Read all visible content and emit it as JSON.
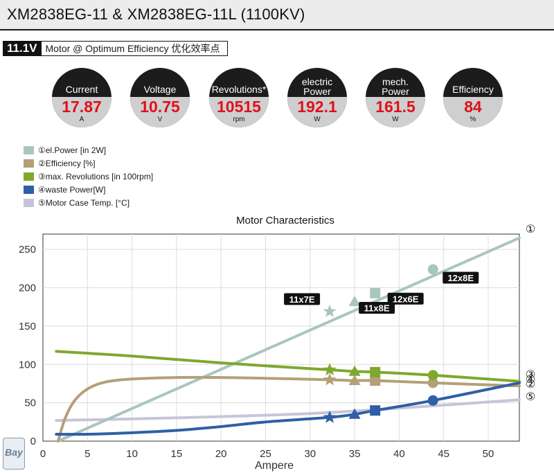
{
  "header": {
    "title": "XM2838EG-11 & XM2838EG-11L (1100KV)",
    "voltage": "11.1V",
    "subtitle": "Motor @ Optimum Efficiency   优化效率点"
  },
  "stats": [
    {
      "label_lines": [
        "Current"
      ],
      "value": "17.87",
      "unit": "A"
    },
    {
      "label_lines": [
        "Voltage"
      ],
      "value": "10.75",
      "unit": "V"
    },
    {
      "label_lines": [
        "Revolutions*"
      ],
      "value": "10515",
      "unit": "rpm"
    },
    {
      "label_lines": [
        "electric",
        "Power"
      ],
      "value": "192.1",
      "unit": "W"
    },
    {
      "label_lines": [
        "mech.",
        "Power"
      ],
      "value": "161.5",
      "unit": "W"
    },
    {
      "label_lines": [
        "Efficiency"
      ],
      "value": "84",
      "unit": "%"
    }
  ],
  "legend": [
    {
      "label": "①el.Power [in 2W]",
      "color": "#a9c6bd"
    },
    {
      "label": "②Efficiency [%]",
      "color": "#b4a077"
    },
    {
      "label": "③max. Revolutions [in 100rpm]",
      "color": "#7fa82e"
    },
    {
      "label": "④waste Power[W]",
      "color": "#2f5fa6"
    },
    {
      "label": "⑤Motor Case Temp. [°C]",
      "color": "#c8c4d8"
    }
  ],
  "chart_data": {
    "type": "line",
    "title": "Motor Characteristics",
    "xlabel": "Ampere",
    "ylabel": "",
    "xlim": [
      0,
      53.5
    ],
    "ylim": [
      0,
      270
    ],
    "xticks": [
      0,
      5,
      10,
      15,
      20,
      25,
      30,
      35,
      40,
      45,
      50
    ],
    "yticks": [
      0,
      50,
      100,
      150,
      200,
      250
    ],
    "grid": true,
    "series": [
      {
        "name": "①",
        "color": "#a9c6bd",
        "x": [
          1.7,
          53.5
        ],
        "y": [
          0,
          265
        ]
      },
      {
        "name": "②",
        "color": "#b4a077",
        "x": [
          1.7,
          2.5,
          3.5,
          5,
          7,
          10,
          15,
          20,
          25,
          32.2,
          35,
          37.3,
          43.8,
          53.5
        ],
        "y": [
          0,
          30,
          52,
          68,
          77,
          81,
          83,
          83,
          82,
          80,
          79,
          79,
          76,
          72
        ]
      },
      {
        "name": "③",
        "color": "#7fa82e",
        "x": [
          1.5,
          10,
          20,
          32.2,
          35,
          37.3,
          43.8,
          53.5
        ],
        "y": [
          117,
          111,
          102,
          93,
          91,
          90,
          86,
          78
        ]
      },
      {
        "name": "④",
        "color": "#2f5fa6",
        "x": [
          1.5,
          5,
          10,
          15,
          20,
          25,
          32.2,
          35,
          37.3,
          43.8,
          53.5
        ],
        "y": [
          9,
          9,
          11,
          14,
          19,
          25,
          31,
          35,
          40,
          53,
          76
        ]
      },
      {
        "name": "⑤",
        "color": "#c8c4d8",
        "x": [
          1.5,
          10,
          20,
          30,
          40,
          53.5
        ],
        "y": [
          27,
          29,
          32,
          36,
          43,
          54
        ]
      }
    ],
    "end_labels": [
      "①",
      "③",
      "④",
      "②",
      "⑤"
    ],
    "operating_points": [
      {
        "label": "11x7E",
        "marker": "star",
        "x": 32.2,
        "values": {
          "el_power": 169,
          "efficiency": 80,
          "revolutions": 93,
          "waste_power": 31
        }
      },
      {
        "label": "11x8E",
        "marker": "triangle",
        "x": 35,
        "values": {
          "el_power": 182,
          "efficiency": 79,
          "revolutions": 91,
          "waste_power": 35
        }
      },
      {
        "label": "12x6E",
        "marker": "square",
        "x": 37.3,
        "values": {
          "el_power": 193,
          "efficiency": 79,
          "revolutions": 90,
          "waste_power": 40
        }
      },
      {
        "label": "12x8E",
        "marker": "circle",
        "x": 43.8,
        "values": {
          "el_power": 224,
          "efficiency": 76,
          "revolutions": 86,
          "waste_power": 53
        }
      }
    ]
  },
  "logo": {
    "text": "Bay"
  }
}
